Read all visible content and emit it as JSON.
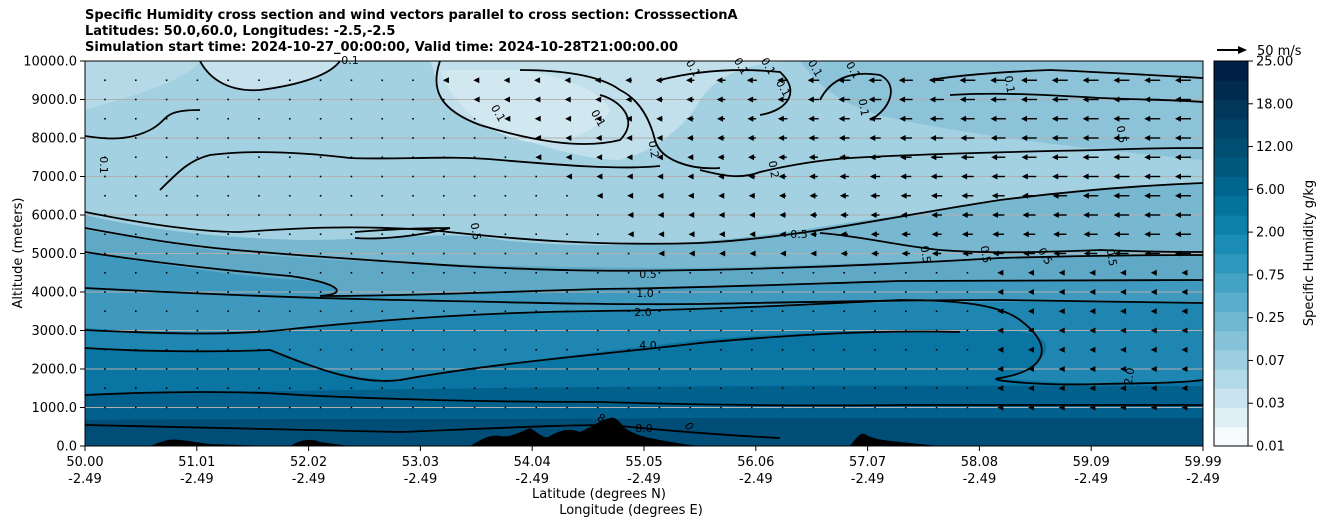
{
  "title": {
    "line1": "Specific Humidity cross section and wind vectors parallel to cross section: CrosssectionA",
    "line2": "Latitudes: 50.0,60.0, Longitudes: -2.5,-2.5",
    "line3": "Simulation start time: 2024-10-27_00:00:00, Valid time: 2024-10-28T21:00:00.00"
  },
  "chart_data": {
    "type": "contour",
    "ylabel": "Altitude (meters)",
    "xlabel_lat": "Latitude (degrees N)",
    "xlabel_lon": "Longitude (degrees E)",
    "ylim": [
      0,
      10000
    ],
    "yticks": [
      "0.0",
      "1000.0",
      "2000.0",
      "3000.0",
      "4000.0",
      "5000.0",
      "6000.0",
      "7000.0",
      "8000.0",
      "9000.0",
      "10000.0"
    ],
    "xticks_lat": [
      "50.00",
      "51.01",
      "52.02",
      "53.03",
      "54.04",
      "55.05",
      "56.06",
      "57.07",
      "58.08",
      "59.09",
      "59.99"
    ],
    "xticks_lon": [
      "-2.49",
      "-2.49",
      "-2.49",
      "-2.49",
      "-2.49",
      "-2.49",
      "-2.49",
      "-2.49",
      "-2.49",
      "-2.49",
      "-2.49"
    ],
    "grid": "horizontal",
    "colorbar": {
      "label": "Specific Humidity g/kg",
      "ticks": [
        "0.01",
        "0.03",
        "0.07",
        "0.25",
        "0.75",
        "2.00",
        "6.00",
        "12.00",
        "18.00",
        "25.00"
      ],
      "colors": [
        "#f7fbfd",
        "#e0eff5",
        "#c9e4ee",
        "#b2d9e7",
        "#9ccee0",
        "#86c3d9",
        "#70b8d2",
        "#5aadcb",
        "#44a2c4",
        "#2e97bd",
        "#1a8cb5",
        "#0b80aa",
        "#03739c",
        "#00668d",
        "#005a7f",
        "#004f73",
        "#004367",
        "#00375b",
        "#002b4f",
        "#001f45"
      ]
    },
    "contour_labels": [
      "0.1",
      "0.1",
      "0.1",
      "0.1",
      "0.1",
      "0.1",
      "0.1",
      "0.1",
      "0.1",
      "0.1",
      "0.1",
      "0.1",
      "0.2",
      "0.2",
      "0.5",
      "0.5",
      "0.5",
      "0.5",
      "0.5",
      "0.5",
      "0.5",
      "0.5",
      "1.0",
      "2.0",
      "2.0",
      "4.0",
      "8.0",
      "8.0",
      "0"
    ],
    "wind_key": {
      "label": "50 m/s",
      "speed": 50
    }
  }
}
